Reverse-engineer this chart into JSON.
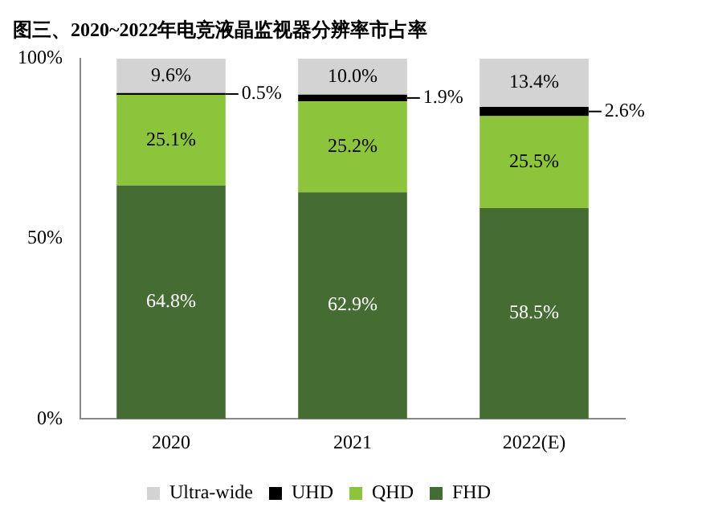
{
  "chart_data": {
    "type": "bar",
    "title": "图三、2020~2022年电竞液晶监视器分辨率市占率",
    "categories": [
      "2020",
      "2021",
      "2022(E)"
    ],
    "stacked": true,
    "ylim": [
      0,
      100
    ],
    "yticks": [
      {
        "value": 0,
        "label": "0%"
      },
      {
        "value": 50,
        "label": "50%"
      },
      {
        "value": 100,
        "label": "100%"
      }
    ],
    "grid": false,
    "legend": "bottom",
    "series": [
      {
        "name": "FHD",
        "color": "#456d33",
        "values": [
          64.8,
          62.9,
          58.5
        ],
        "value_labels": [
          "64.8%",
          "62.9%",
          "58.5%"
        ]
      },
      {
        "name": "QHD",
        "color": "#8cc43c",
        "values": [
          25.1,
          25.2,
          25.5
        ],
        "value_labels": [
          "25.1%",
          "25.2%",
          "25.5%"
        ]
      },
      {
        "name": "UHD",
        "color": "#000000",
        "values": [
          0.5,
          1.9,
          2.6
        ],
        "value_labels": [
          "0.5%",
          "1.9%",
          "2.6%"
        ]
      },
      {
        "name": "Ultra-wide",
        "color": "#d3d3d3",
        "values": [
          9.6,
          10.0,
          13.4
        ],
        "value_labels": [
          "9.6%",
          "10.0%",
          "13.4%"
        ]
      }
    ]
  }
}
